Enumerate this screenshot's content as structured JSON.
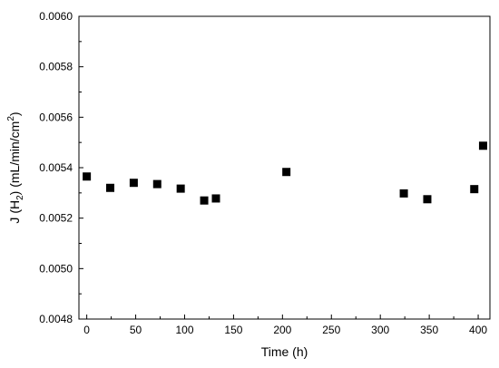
{
  "chart_data": {
    "type": "scatter",
    "xlabel": "Time (h)",
    "ylabel": {
      "prefix": "J (H",
      "sub": "2",
      "mid": ") (mL/min/cm",
      "sup": "2",
      "suffix": ")"
    },
    "xlim": [
      -8,
      412
    ],
    "ylim": [
      0.0048,
      0.006
    ],
    "x_ticks": [
      0,
      50,
      100,
      150,
      200,
      250,
      300,
      350,
      400
    ],
    "y_ticks": [
      "0.0048",
      "0.0050",
      "0.0052",
      "0.0054",
      "0.0056",
      "0.0058",
      "0.0060"
    ],
    "grid": false,
    "marker": "square",
    "marker_color": "#000000",
    "series": [
      {
        "points": [
          {
            "x": 0,
            "y": 0.005365
          },
          {
            "x": 24,
            "y": 0.00532
          },
          {
            "x": 48,
            "y": 0.00534
          },
          {
            "x": 72,
            "y": 0.005335
          },
          {
            "x": 96,
            "y": 0.005317
          },
          {
            "x": 120,
            "y": 0.00527
          },
          {
            "x": 132,
            "y": 0.005278
          },
          {
            "x": 204,
            "y": 0.005383
          },
          {
            "x": 324,
            "y": 0.005298
          },
          {
            "x": 348,
            "y": 0.005275
          },
          {
            "x": 396,
            "y": 0.005315
          },
          {
            "x": 405,
            "y": 0.005487
          }
        ]
      }
    ]
  }
}
